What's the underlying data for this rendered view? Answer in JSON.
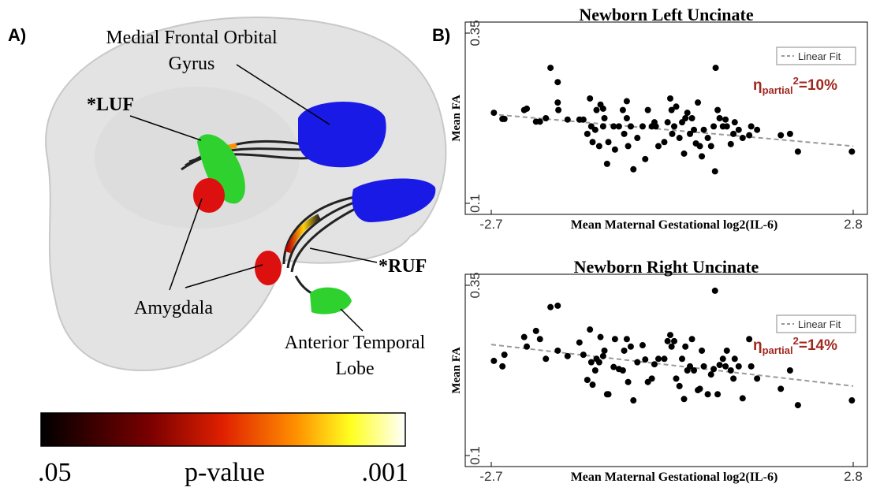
{
  "panel_a": {
    "label": "A)",
    "labels": [
      "Medial Frontal Orbital",
      "Gyrus",
      "*LUF",
      "Amygdala",
      "*RUF",
      "Anterior Temporal",
      "Lobe"
    ],
    "colorbar": {
      "min_label": ".05",
      "title": "p-value",
      "max_label": ".001"
    }
  },
  "panel_b_label": "B)",
  "chart_data": [
    {
      "type": "scatter",
      "title": "Newborn Left Uncinate",
      "xlabel": "Mean Maternal Gestational log2(IL-6)",
      "ylabel": "Mean FA",
      "xlim": [
        -2.7,
        2.8
      ],
      "ylim": [
        0.1,
        0.35
      ],
      "xticks": [
        -2.7,
        2.8
      ],
      "yticks": [
        0.1,
        0.35
      ],
      "color": "#000000",
      "x": [
        -2.66,
        -2.53,
        -2.5,
        -2.2,
        -2.16,
        -2.02,
        -1.96,
        -1.87,
        -1.8,
        -1.69,
        -1.69,
        -1.68,
        -1.54,
        -1.36,
        -1.3,
        -1.24,
        -1.2,
        -1.18,
        -1.16,
        -1.12,
        -1.1,
        -1.06,
        -1.04,
        -1.0,
        -1.0,
        -0.98,
        -0.94,
        -0.92,
        -0.84,
        -0.82,
        -0.76,
        -0.7,
        -0.68,
        -0.64,
        -0.64,
        -0.62,
        -0.58,
        -0.54,
        -0.48,
        -0.4,
        -0.36,
        -0.32,
        -0.26,
        -0.22,
        -0.2,
        -0.16,
        -0.07,
        -0.02,
        0.02,
        0.04,
        0.05,
        0.08,
        0.11,
        0.16,
        0.2,
        0.23,
        0.25,
        0.28,
        0.32,
        0.35,
        0.38,
        0.41,
        0.44,
        0.47,
        0.5,
        0.53,
        0.59,
        0.64,
        0.68,
        0.7,
        0.71,
        0.74,
        0.77,
        0.82,
        0.86,
        0.88,
        0.94,
        0.98,
        1.0,
        1.06,
        1.12,
        1.22,
        1.25,
        1.34,
        1.7,
        1.84,
        1.96,
        2.78
      ],
      "values": [
        0.233,
        0.224,
        0.224,
        0.237,
        0.239,
        0.22,
        0.22,
        0.225,
        0.299,
        0.278,
        0.248,
        0.237,
        0.223,
        0.223,
        0.223,
        0.202,
        0.254,
        0.213,
        0.19,
        0.208,
        0.237,
        0.184,
        0.245,
        0.239,
        0.213,
        0.225,
        0.158,
        0.19,
        0.213,
        0.179,
        0.213,
        0.237,
        0.202,
        0.25,
        0.225,
        0.184,
        0.213,
        0.15,
        0.196,
        0.213,
        0.165,
        0.237,
        0.213,
        0.219,
        0.213,
        0.184,
        0.19,
        0.219,
        0.254,
        0.237,
        0.202,
        0.213,
        0.242,
        0.196,
        0.219,
        0.173,
        0.225,
        0.233,
        0.202,
        0.225,
        0.208,
        0.188,
        0.248,
        0.184,
        0.169,
        0.208,
        0.196,
        0.184,
        0.213,
        0.147,
        0.299,
        0.237,
        0.225,
        0.213,
        0.223,
        0.213,
        0.187,
        0.202,
        0.219,
        0.208,
        0.196,
        0.2,
        0.213,
        0.208,
        0.2,
        0.202,
        0.176,
        0.176
      ],
      "fit": {
        "name": "Linear Fit",
        "color": "#999999",
        "x": [
          -2.7,
          2.8
        ],
        "values": [
          0.231,
          0.184
        ]
      },
      "annotation": {
        "symbol": "η",
        "subscript": "partial",
        "superscript": "2",
        "text": "=10%"
      }
    },
    {
      "type": "scatter",
      "title": "Newborn Right Uncinate",
      "xlabel": "Mean Maternal Gestational log2(IL-6)",
      "ylabel": "Mean FA",
      "xlim": [
        -2.7,
        2.8
      ],
      "ylim": [
        0.1,
        0.35
      ],
      "xticks": [
        -2.7,
        2.8
      ],
      "yticks": [
        0.1,
        0.35
      ],
      "color": "#000000",
      "x": [
        -2.66,
        -2.53,
        -2.5,
        -2.2,
        -2.16,
        -2.02,
        -1.96,
        -1.87,
        -1.8,
        -1.69,
        -1.69,
        -1.54,
        -1.36,
        -1.3,
        -1.24,
        -1.2,
        -1.18,
        -1.16,
        -1.12,
        -1.1,
        -1.06,
        -1.04,
        -1.0,
        -0.98,
        -0.94,
        -0.92,
        -0.84,
        -0.82,
        -0.76,
        -0.7,
        -0.68,
        -0.64,
        -0.62,
        -0.58,
        -0.54,
        -0.48,
        -0.4,
        -0.36,
        -0.32,
        -0.26,
        -0.22,
        -0.16,
        -0.07,
        -0.02,
        0.02,
        0.04,
        0.08,
        0.11,
        0.16,
        0.2,
        0.23,
        0.25,
        0.28,
        0.32,
        0.35,
        0.38,
        0.44,
        0.47,
        0.5,
        0.53,
        0.59,
        0.64,
        0.68,
        0.7,
        0.74,
        0.77,
        0.82,
        0.86,
        0.88,
        0.94,
        0.98,
        1.0,
        1.06,
        1.12,
        1.22,
        1.25,
        1.34,
        1.7,
        1.84,
        1.96,
        2.78
      ],
      "values": [
        0.239,
        0.231,
        0.248,
        0.274,
        0.26,
        0.283,
        0.271,
        0.242,
        0.318,
        0.32,
        0.254,
        0.246,
        0.266,
        0.248,
        0.211,
        0.285,
        0.237,
        0.204,
        0.225,
        0.242,
        0.237,
        0.274,
        0.246,
        0.254,
        0.19,
        0.19,
        0.23,
        0.271,
        0.227,
        0.225,
        0.254,
        0.271,
        0.208,
        0.26,
        0.181,
        0.237,
        0.262,
        0.241,
        0.208,
        0.213,
        0.234,
        0.242,
        0.242,
        0.268,
        0.277,
        0.26,
        0.268,
        0.213,
        0.202,
        0.242,
        0.183,
        0.26,
        0.225,
        0.231,
        0.271,
        0.225,
        0.196,
        0.198,
        0.254,
        0.231,
        0.19,
        0.219,
        0.227,
        0.342,
        0.19,
        0.233,
        0.242,
        0.231,
        0.254,
        0.225,
        0.213,
        0.242,
        0.231,
        0.184,
        0.271,
        0.231,
        0.213,
        0.198,
        0.225,
        0.174,
        0.181
      ],
      "fit": {
        "name": "Linear Fit",
        "color": "#999999",
        "x": [
          -2.7,
          2.8
        ],
        "values": [
          0.263,
          0.202
        ]
      },
      "annotation": {
        "symbol": "η",
        "subscript": "partial",
        "superscript": "2",
        "text": "=14%"
      }
    }
  ]
}
